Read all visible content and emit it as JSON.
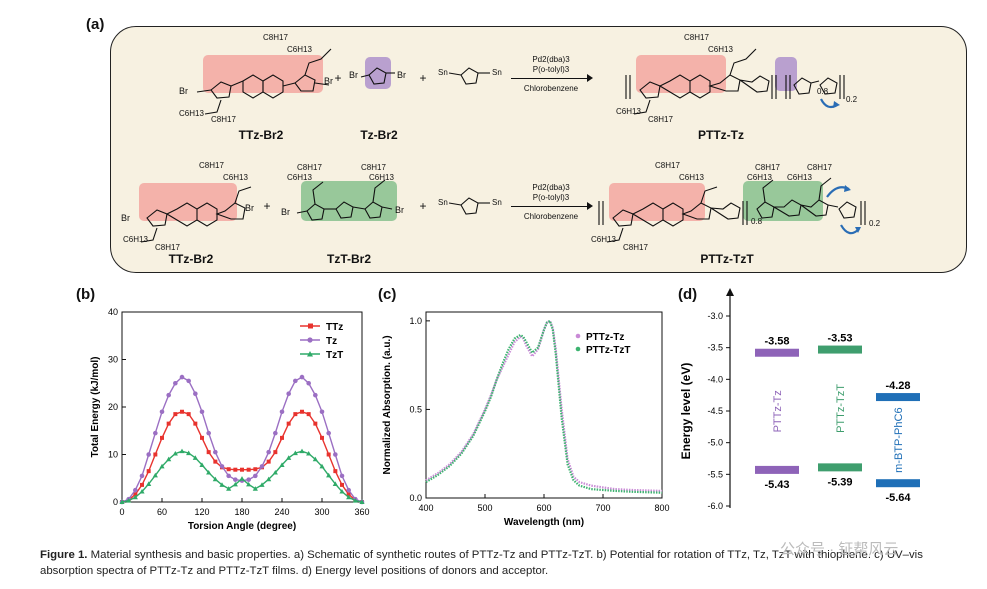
{
  "panels": {
    "a": "(a)",
    "b": "(b)",
    "c": "(c)",
    "d": "(d)"
  },
  "scheme": {
    "row1": {
      "reactant1": "TTz-Br2",
      "reactant2": "Tz-Br2",
      "plus": "+",
      "conditions": [
        "Pd2(dba)3",
        "P(o-tolyl)3",
        "Chlorobenzene"
      ],
      "product": "PTTz-Tz",
      "sub_08": "0.8",
      "sub_02": "0.2"
    },
    "row2": {
      "reactant1": "TTz-Br2",
      "reactant2": "TzT-Br2",
      "plus": "+",
      "conditions": [
        "Pd2(dba)3",
        "P(o-tolyl)3",
        "Chlorobenzene"
      ],
      "product": "PTTz-TzT",
      "sub_08": "0.8",
      "sub_02": "0.2"
    },
    "atom_labels": {
      "br": "Br",
      "sn": "Sn",
      "s": "S",
      "n": "N",
      "c8": "C8H17",
      "c6": "C6H13"
    }
  },
  "chart_data": [
    {
      "type": "line",
      "panel": "b",
      "xlabel": "Torsion Angle (degree)",
      "ylabel": "Total Energy (kJ/mol)",
      "xlim": [
        0,
        360
      ],
      "ylim": [
        0,
        40
      ],
      "xticks": [
        0,
        60,
        120,
        180,
        240,
        300,
        360
      ],
      "yticks": [
        0,
        10,
        20,
        30,
        40
      ],
      "legend_position": "top-right",
      "series": [
        {
          "name": "TTz",
          "color": "#e8332e",
          "marker": "square",
          "x": [
            0,
            10,
            20,
            30,
            40,
            50,
            60,
            70,
            80,
            90,
            100,
            110,
            120,
            130,
            140,
            150,
            160,
            170,
            180,
            190,
            200,
            210,
            220,
            230,
            240,
            250,
            260,
            270,
            280,
            290,
            300,
            310,
            320,
            330,
            340,
            350,
            360
          ],
          "y": [
            0,
            0.4,
            1.6,
            3.6,
            6.5,
            10,
            13.5,
            16.5,
            18.5,
            19,
            18.5,
            16.5,
            13.5,
            10.5,
            8.5,
            7.3,
            6.9,
            6.8,
            6.8,
            6.8,
            6.9,
            7.3,
            8.5,
            10.5,
            13.5,
            16.5,
            18.5,
            19,
            18.5,
            16.5,
            13.5,
            10,
            6.5,
            3.6,
            1.6,
            0.4,
            0
          ]
        },
        {
          "name": "Tz",
          "color": "#9b6fc3",
          "marker": "circle",
          "x": [
            0,
            10,
            20,
            30,
            40,
            50,
            60,
            70,
            80,
            90,
            100,
            110,
            120,
            130,
            140,
            150,
            160,
            170,
            180,
            190,
            200,
            210,
            220,
            230,
            240,
            250,
            260,
            270,
            280,
            290,
            300,
            310,
            320,
            330,
            340,
            350,
            360
          ],
          "y": [
            0,
            0.6,
            2.5,
            5.5,
            10,
            14.5,
            19,
            22.5,
            25,
            26.3,
            25.5,
            22.8,
            19,
            14.5,
            10.5,
            7.5,
            5.5,
            4.7,
            4.5,
            4.7,
            5.5,
            7.5,
            10.5,
            14.5,
            19,
            22.8,
            25.5,
            26.3,
            25,
            22.5,
            19,
            14.5,
            10,
            5.5,
            2.5,
            0.6,
            0
          ]
        },
        {
          "name": "TzT",
          "color": "#2faa68",
          "marker": "triangle",
          "x": [
            0,
            10,
            20,
            30,
            40,
            50,
            60,
            70,
            80,
            90,
            100,
            110,
            120,
            130,
            140,
            150,
            160,
            170,
            180,
            190,
            200,
            210,
            220,
            230,
            240,
            250,
            260,
            270,
            280,
            290,
            300,
            310,
            320,
            330,
            340,
            350,
            360
          ],
          "y": [
            0,
            0.3,
            1,
            2.2,
            3.8,
            5.6,
            7.5,
            9,
            10.2,
            10.7,
            10.3,
            9.3,
            7.8,
            6.2,
            4.8,
            3.6,
            2.8,
            3.7,
            4.9,
            3.7,
            2.8,
            3.6,
            4.8,
            6.2,
            7.8,
            9.3,
            10.3,
            10.7,
            10.2,
            9,
            7.5,
            5.6,
            3.8,
            2.2,
            1,
            0.3,
            0
          ]
        }
      ]
    },
    {
      "type": "line",
      "panel": "c",
      "xlabel": "Wavelength (nm)",
      "ylabel": "Normalized Absorption. (a.u.)",
      "xlim": [
        400,
        800
      ],
      "ylim": [
        0,
        1.05
      ],
      "xticks": [
        400,
        500,
        600,
        700,
        800
      ],
      "yticks": [
        0.0,
        0.5,
        1.0
      ],
      "legend_position": "top-right",
      "series": [
        {
          "name": "PTTz-Tz",
          "color": "#c98ad6",
          "x": [
            400,
            420,
            440,
            460,
            480,
            500,
            510,
            520,
            530,
            540,
            550,
            560,
            565,
            570,
            580,
            590,
            600,
            605,
            610,
            615,
            620,
            630,
            640,
            650,
            660,
            680,
            700,
            720,
            750,
            800
          ],
          "y": [
            0.1,
            0.14,
            0.19,
            0.26,
            0.36,
            0.5,
            0.58,
            0.67,
            0.74,
            0.81,
            0.88,
            0.91,
            0.9,
            0.86,
            0.8,
            0.84,
            0.95,
            0.99,
            1.0,
            0.96,
            0.84,
            0.5,
            0.22,
            0.12,
            0.09,
            0.07,
            0.06,
            0.05,
            0.045,
            0.04
          ]
        },
        {
          "name": "PTTz-TzT",
          "color": "#3db370",
          "x": [
            400,
            420,
            440,
            460,
            480,
            500,
            510,
            520,
            530,
            540,
            550,
            560,
            565,
            570,
            580,
            590,
            600,
            605,
            610,
            615,
            620,
            630,
            640,
            650,
            660,
            680,
            700,
            720,
            750,
            800
          ],
          "y": [
            0.09,
            0.13,
            0.18,
            0.25,
            0.35,
            0.49,
            0.57,
            0.67,
            0.76,
            0.84,
            0.9,
            0.92,
            0.91,
            0.88,
            0.82,
            0.85,
            0.95,
            0.99,
            1.0,
            0.95,
            0.81,
            0.45,
            0.19,
            0.1,
            0.07,
            0.05,
            0.045,
            0.04,
            0.035,
            0.03
          ]
        }
      ]
    },
    {
      "type": "bar",
      "panel": "d",
      "ylabel": "Energy level (eV)",
      "ylim": [
        -6.0,
        -3.0
      ],
      "yticks": [
        -3.0,
        -3.5,
        -4.0,
        -4.5,
        -5.0,
        -5.5,
        -6.0
      ],
      "tick_labels": [
        "-3.0",
        "-3.5",
        "-4.0",
        "-4.5",
        "-5.0",
        "-5.5",
        "-6.0"
      ],
      "materials": [
        {
          "name": "PTTz-Tz",
          "lumo": -3.58,
          "homo": -5.43,
          "lumo_label": "-3.58",
          "homo_label": "-5.43",
          "color": "#8e63b8"
        },
        {
          "name": "PTTz-TzT",
          "lumo": -3.53,
          "homo": -5.39,
          "lumo_label": "-3.53",
          "homo_label": "-5.39",
          "color": "#3f9e6e"
        },
        {
          "name": "m-BTP-PhC6",
          "lumo": -4.28,
          "homo": -5.64,
          "lumo_label": "-4.28",
          "homo_label": "-5.64",
          "color": "#1f6fb7"
        }
      ]
    }
  ],
  "caption": {
    "bold": "Figure 1.",
    "text": " Material synthesis and basic properties. a) Schematic of synthetic routes of PTTz-Tz and PTTz-TzT. b) Potential for rotation of TTz, Tz, TzT with thiophene. c) UV–vis absorption spectra of PTTz-Tz and PTTz-TzT films. d) Energy level positions of donors and acceptor."
  },
  "watermark": "公众号 · 钲帮风云"
}
